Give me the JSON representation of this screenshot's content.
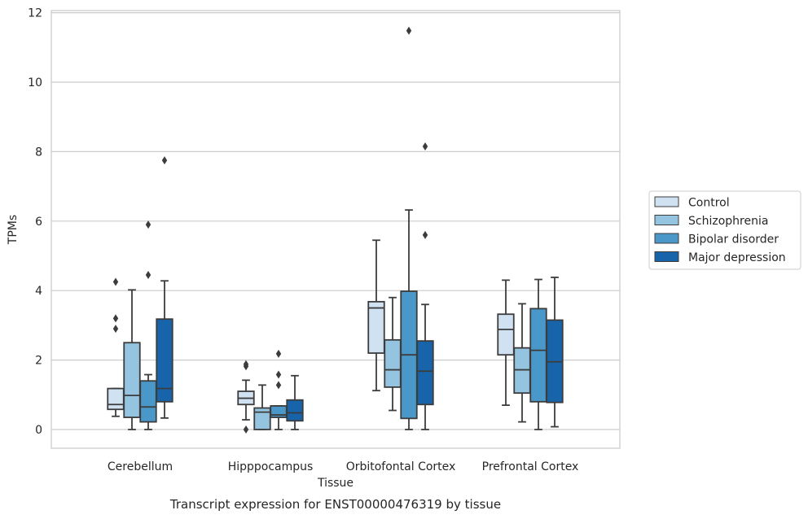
{
  "chart_data": {
    "type": "box",
    "title": "",
    "caption": "Transcript expression for ENST00000476319 by tissue",
    "xlabel": "Tissue",
    "ylabel": "TPMs",
    "ylim": [
      -0.55,
      12.1
    ],
    "yticks": [
      0,
      2,
      4,
      6,
      8,
      10,
      12
    ],
    "grid": "horizontal",
    "legend_position": "right",
    "categories": [
      "Cerebellum",
      "Hipppocampus",
      "Orbitofontal Cortex",
      "Prefrontal Cortex"
    ],
    "series": [
      {
        "name": "Control",
        "color": "#d0e1f2",
        "boxes": [
          {
            "whislo": 0.38,
            "q1": 0.58,
            "med": 0.72,
            "q3": 1.18,
            "whishi": 1.18,
            "fliers": [
              2.9,
              3.2,
              4.25
            ]
          },
          {
            "whislo": 0.28,
            "q1": 0.72,
            "med": 0.9,
            "q3": 1.1,
            "whishi": 1.42,
            "fliers": [
              0.0,
              1.82,
              1.88
            ]
          },
          {
            "whislo": 1.12,
            "q1": 2.2,
            "med": 3.5,
            "q3": 3.68,
            "whishi": 5.45,
            "fliers": []
          },
          {
            "whislo": 0.7,
            "q1": 2.15,
            "med": 2.88,
            "q3": 3.32,
            "whishi": 4.3,
            "fliers": []
          }
        ]
      },
      {
        "name": "Schizophrenia",
        "color": "#94c4df",
        "boxes": [
          {
            "whislo": 0.0,
            "q1": 0.35,
            "med": 0.98,
            "q3": 2.5,
            "whishi": 4.02,
            "fliers": []
          },
          {
            "whislo": 0.0,
            "q1": 0.0,
            "med": 0.5,
            "q3": 0.62,
            "whishi": 1.28,
            "fliers": []
          },
          {
            "whislo": 0.55,
            "q1": 1.22,
            "med": 1.72,
            "q3": 2.58,
            "whishi": 3.8,
            "fliers": []
          },
          {
            "whislo": 0.22,
            "q1": 1.05,
            "med": 1.72,
            "q3": 2.35,
            "whishi": 3.62,
            "fliers": []
          }
        ]
      },
      {
        "name": "Bipolar disorder",
        "color": "#4a98c9",
        "boxes": [
          {
            "whislo": 0.0,
            "q1": 0.22,
            "med": 0.65,
            "q3": 1.4,
            "whishi": 1.58,
            "fliers": [
              4.45,
              5.9
            ]
          },
          {
            "whislo": 0.0,
            "q1": 0.35,
            "med": 0.42,
            "q3": 0.68,
            "whishi": 0.68,
            "fliers": [
              1.28,
              1.58,
              2.18
            ]
          },
          {
            "whislo": 0.0,
            "q1": 0.32,
            "med": 2.15,
            "q3": 3.98,
            "whishi": 6.32,
            "fliers": [
              11.48
            ]
          },
          {
            "whislo": 0.0,
            "q1": 0.8,
            "med": 2.28,
            "q3": 3.48,
            "whishi": 4.32,
            "fliers": []
          }
        ]
      },
      {
        "name": "Major depression",
        "color": "#1764ab",
        "boxes": [
          {
            "whislo": 0.33,
            "q1": 0.8,
            "med": 1.18,
            "q3": 3.18,
            "whishi": 4.28,
            "fliers": [
              7.75
            ]
          },
          {
            "whislo": 0.0,
            "q1": 0.25,
            "med": 0.48,
            "q3": 0.85,
            "whishi": 1.55,
            "fliers": []
          },
          {
            "whislo": 0.0,
            "q1": 0.72,
            "med": 1.68,
            "q3": 2.55,
            "whishi": 3.6,
            "fliers": [
              5.6,
              8.15
            ]
          },
          {
            "whislo": 0.08,
            "q1": 0.78,
            "med": 1.95,
            "q3": 3.15,
            "whishi": 4.38,
            "fliers": []
          }
        ]
      }
    ]
  }
}
